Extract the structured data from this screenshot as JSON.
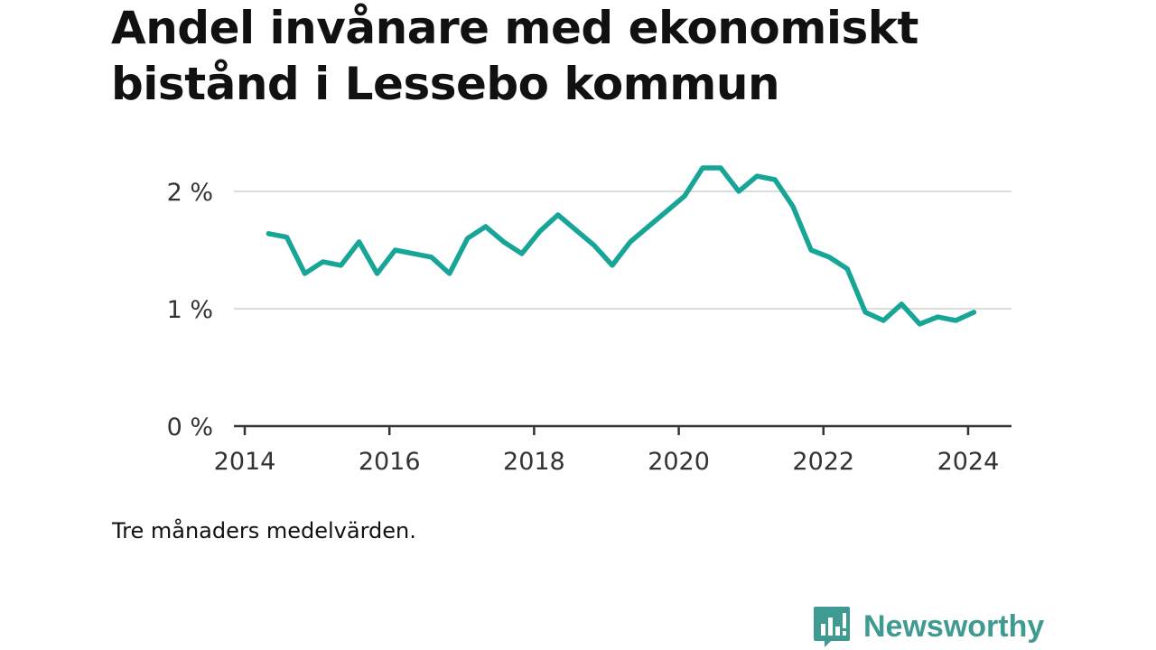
{
  "chart_data": {
    "type": "line",
    "title": "Andel invånare med ekonomiskt bistånd i Lessebo kommun",
    "note": "Tre månaders medelvärden.",
    "y_ticks": [
      {
        "value": 0,
        "label": "0 %"
      },
      {
        "value": 1,
        "label": "1 %"
      },
      {
        "value": 2,
        "label": "2 %"
      }
    ],
    "x_ticks": [
      {
        "value": 2014,
        "label": "2014"
      },
      {
        "value": 2016,
        "label": "2016"
      },
      {
        "value": 2018,
        "label": "2018"
      },
      {
        "value": 2020,
        "label": "2020"
      },
      {
        "value": 2022,
        "label": "2022"
      },
      {
        "value": 2024,
        "label": "2024"
      }
    ],
    "xlim": [
      2013.85,
      2024.6
    ],
    "ylim": [
      0,
      2.4
    ],
    "grid": true,
    "series": [
      {
        "color": "#16a597",
        "points": [
          [
            2014.33,
            1.64
          ],
          [
            2014.58,
            1.61
          ],
          [
            2014.83,
            1.3
          ],
          [
            2015.08,
            1.4
          ],
          [
            2015.33,
            1.37
          ],
          [
            2015.58,
            1.57
          ],
          [
            2015.83,
            1.3
          ],
          [
            2016.08,
            1.5
          ],
          [
            2016.33,
            1.47
          ],
          [
            2016.58,
            1.44
          ],
          [
            2016.83,
            1.3
          ],
          [
            2017.08,
            1.6
          ],
          [
            2017.33,
            1.7
          ],
          [
            2017.58,
            1.57
          ],
          [
            2017.83,
            1.47
          ],
          [
            2018.08,
            1.66
          ],
          [
            2018.33,
            1.8
          ],
          [
            2018.58,
            1.67
          ],
          [
            2018.83,
            1.54
          ],
          [
            2019.08,
            1.37
          ],
          [
            2019.33,
            1.57
          ],
          [
            2019.58,
            1.7
          ],
          [
            2019.83,
            1.83
          ],
          [
            2020.08,
            1.96
          ],
          [
            2020.33,
            2.2
          ],
          [
            2020.58,
            2.2
          ],
          [
            2020.83,
            2.0
          ],
          [
            2021.08,
            2.13
          ],
          [
            2021.33,
            2.1
          ],
          [
            2021.58,
            1.87
          ],
          [
            2021.83,
            1.5
          ],
          [
            2022.08,
            1.44
          ],
          [
            2022.33,
            1.34
          ],
          [
            2022.58,
            0.97
          ],
          [
            2022.83,
            0.9
          ],
          [
            2023.08,
            1.04
          ],
          [
            2023.33,
            0.87
          ],
          [
            2023.58,
            0.93
          ],
          [
            2023.83,
            0.9
          ],
          [
            2024.08,
            0.97
          ]
        ]
      }
    ]
  },
  "brand": {
    "name": "Newsworthy",
    "icon": "newsworthy-logo-icon",
    "color": "#3f9b91"
  }
}
